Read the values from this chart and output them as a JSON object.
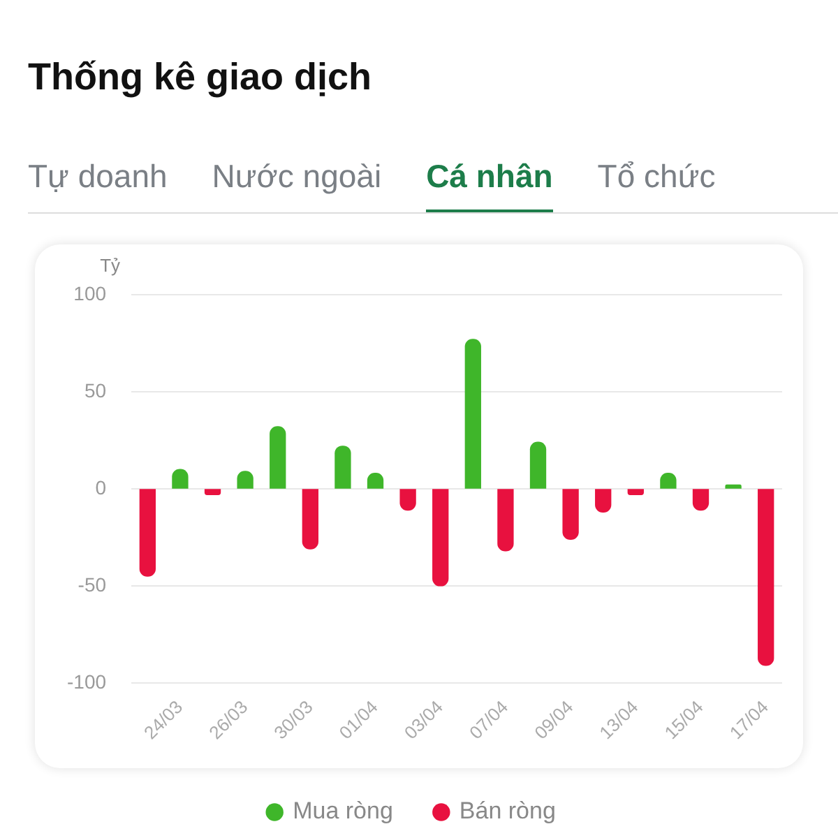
{
  "chart_data": {
    "type": "bar",
    "title": "Thống kê giao dịch",
    "annotations": [
      "Tự doanh",
      "Nước ngoài",
      "Cá nhân",
      "Tổ chức"
    ],
    "ylabel": "Tỷ",
    "categories": [
      null,
      "24/03",
      null,
      "26/03",
      null,
      "30/03",
      null,
      "01/04",
      null,
      "03/04",
      null,
      "07/04",
      null,
      "09/04",
      null,
      "13/04",
      null,
      "15/04",
      null,
      "17/04"
    ],
    "series": [
      {
        "name": "Mua ròng",
        "color": "#3fb62a",
        "values": [
          null,
          10,
          null,
          9,
          32,
          null,
          22,
          8,
          null,
          null,
          77,
          null,
          24,
          null,
          null,
          null,
          8,
          null,
          2,
          null
        ]
      },
      {
        "name": "Bán ròng",
        "color": "#e8113f",
        "values": [
          -45,
          null,
          -3,
          null,
          null,
          -31,
          null,
          null,
          -11,
          -50,
          null,
          -32,
          null,
          -26,
          -12,
          -3,
          null,
          -11,
          null,
          -91
        ]
      }
    ],
    "ylim": [
      -100,
      100
    ],
    "yticks": [
      -100,
      -50,
      0,
      50,
      100
    ],
    "grid": "y",
    "legend": "bottom"
  }
}
